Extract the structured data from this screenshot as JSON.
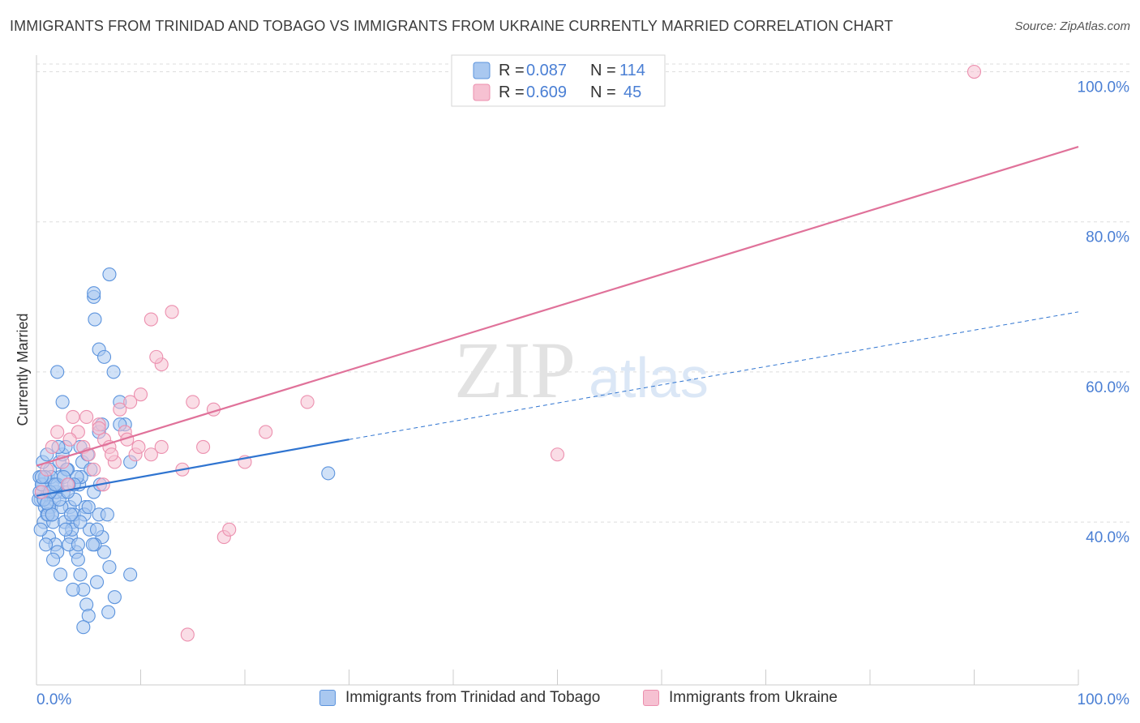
{
  "title": "IMMIGRANTS FROM TRINIDAD AND TOBAGO VS IMMIGRANTS FROM UKRAINE CURRENTLY MARRIED CORRELATION CHART",
  "source": "Source: ZipAtlas.com",
  "watermark": {
    "zip": "ZIP",
    "atlas": "atlas"
  },
  "colors": {
    "blue_fill": "#a9c8f0",
    "blue_stroke": "#5b93dd",
    "blue_line": "#2f74d0",
    "pink_fill": "#f6c1d2",
    "pink_stroke": "#ec8fae",
    "pink_line": "#e0729a",
    "tick_label": "#4a7fd4",
    "grid": "#dddddd"
  },
  "legend": {
    "entries": [
      {
        "r_label": "R =",
        "r_value": "0.087",
        "n_label": "N =",
        "n_value": "114"
      },
      {
        "r_label": "R =",
        "r_value": "0.609",
        "n_label": "N =",
        "n_value": "45"
      }
    ]
  },
  "chart_data": {
    "type": "scatter",
    "ylabel": "Currently Married",
    "xlim": [
      0,
      100
    ],
    "ylim": [
      18.3,
      102
    ],
    "x_tick_labels": [
      "0.0%",
      "100.0%"
    ],
    "y_ticks": [
      {
        "value": 40,
        "label": "40.0%"
      },
      {
        "value": 60,
        "label": "60.0%"
      },
      {
        "value": 80,
        "label": "80.0%"
      },
      {
        "value": 100,
        "label": "100.0%"
      }
    ],
    "grid": true,
    "legend_position": "top-center",
    "series": [
      {
        "name": "Immigrants from Trinidad and Tobago",
        "color": "blue",
        "trend": {
          "solid": [
            [
              0,
              43.5
            ],
            [
              30,
              51.0
            ]
          ],
          "dashed": [
            [
              30,
              51.0
            ],
            [
              100,
              68.0
            ]
          ]
        },
        "points": [
          [
            0.3,
            46
          ],
          [
            0.5,
            44
          ],
          [
            0.4,
            43
          ],
          [
            0.6,
            45
          ],
          [
            0.8,
            42
          ],
          [
            1.0,
            41
          ],
          [
            0.7,
            40
          ],
          [
            1.2,
            38
          ],
          [
            0.9,
            46
          ],
          [
            1.1,
            44
          ],
          [
            1.3,
            47
          ],
          [
            1.5,
            45
          ],
          [
            1.4,
            42
          ],
          [
            1.6,
            40
          ],
          [
            1.8,
            37
          ],
          [
            2.0,
            36
          ],
          [
            1.7,
            43
          ],
          [
            2.2,
            48
          ],
          [
            2.5,
            49
          ],
          [
            2.3,
            46
          ],
          [
            2.8,
            50
          ],
          [
            3.0,
            47
          ],
          [
            2.6,
            44
          ],
          [
            3.2,
            42
          ],
          [
            3.5,
            40
          ],
          [
            3.3,
            38
          ],
          [
            3.8,
            36
          ],
          [
            4.0,
            35
          ],
          [
            4.2,
            33
          ],
          [
            4.5,
            31
          ],
          [
            4.8,
            29
          ],
          [
            5.0,
            27.5
          ],
          [
            3.6,
            41
          ],
          [
            4.1,
            45
          ],
          [
            4.4,
            48
          ],
          [
            4.9,
            49
          ],
          [
            5.2,
            47
          ],
          [
            5.5,
            44
          ],
          [
            6.0,
            41
          ],
          [
            6.3,
            38
          ],
          [
            6.5,
            36
          ],
          [
            7.0,
            34
          ],
          [
            7.5,
            30
          ],
          [
            8.0,
            56
          ],
          [
            8.5,
            53
          ],
          [
            9.0,
            48
          ],
          [
            2.1,
            50
          ],
          [
            1.9,
            44
          ],
          [
            0.2,
            43
          ],
          [
            0.6,
            48
          ],
          [
            1.0,
            49
          ],
          [
            1.4,
            46
          ],
          [
            2.4,
            42
          ],
          [
            2.7,
            40
          ],
          [
            3.1,
            37
          ],
          [
            3.4,
            39
          ],
          [
            3.7,
            43
          ],
          [
            4.3,
            46
          ],
          [
            4.7,
            42
          ],
          [
            5.1,
            39
          ],
          [
            5.6,
            37
          ],
          [
            6.1,
            45
          ],
          [
            0.3,
            44
          ],
          [
            0.5,
            45
          ],
          [
            0.8,
            46
          ],
          [
            1.2,
            42
          ],
          [
            1.5,
            41
          ],
          [
            2.0,
            45
          ],
          [
            2.9,
            47
          ],
          [
            3.9,
            46
          ],
          [
            4.6,
            41
          ],
          [
            5.4,
            37
          ],
          [
            6.8,
            41
          ],
          [
            0.4,
            39
          ],
          [
            1.1,
            41
          ],
          [
            2.2,
            43
          ],
          [
            3.0,
            44
          ],
          [
            3.6,
            45
          ],
          [
            4.2,
            40
          ],
          [
            5.0,
            42
          ],
          [
            5.8,
            39
          ],
          [
            0.7,
            43
          ],
          [
            1.3,
            44
          ],
          [
            1.8,
            45
          ],
          [
            2.6,
            46
          ],
          [
            3.3,
            41
          ],
          [
            4.0,
            37
          ],
          [
            6.9,
            28
          ],
          [
            0.9,
            37
          ],
          [
            1.6,
            35
          ],
          [
            2.3,
            33
          ],
          [
            3.5,
            31
          ],
          [
            4.5,
            26
          ],
          [
            7.0,
            73
          ],
          [
            5.5,
            70
          ],
          [
            5.5,
            70.5
          ],
          [
            6.0,
            63
          ],
          [
            6.5,
            62
          ],
          [
            5.6,
            67
          ],
          [
            2.0,
            60
          ],
          [
            6.0,
            52
          ],
          [
            6.3,
            53
          ],
          [
            7.4,
            60
          ],
          [
            2.5,
            56
          ],
          [
            1.5,
            41
          ],
          [
            1.0,
            42.5
          ],
          [
            2.8,
            39
          ],
          [
            3.1,
            45
          ],
          [
            0.5,
            46
          ],
          [
            5.8,
            32
          ],
          [
            8.0,
            53
          ],
          [
            9.0,
            33
          ],
          [
            28.0,
            46.5
          ],
          [
            4.2,
            50
          ]
        ]
      },
      {
        "name": "Immigrants from Ukraine",
        "color": "pink",
        "trend": {
          "solid": [
            [
              0,
              47.5
            ],
            [
              100,
              90.0
            ]
          ]
        },
        "points": [
          [
            0.5,
            44
          ],
          [
            1.0,
            47
          ],
          [
            1.5,
            50
          ],
          [
            2.0,
            52
          ],
          [
            2.5,
            48
          ],
          [
            3.0,
            45
          ],
          [
            3.5,
            54
          ],
          [
            4.0,
            52
          ],
          [
            4.5,
            50
          ],
          [
            5.0,
            49
          ],
          [
            5.5,
            47
          ],
          [
            6.0,
            53
          ],
          [
            6.5,
            51
          ],
          [
            7.0,
            50
          ],
          [
            7.5,
            48
          ],
          [
            8.0,
            55
          ],
          [
            8.5,
            52
          ],
          [
            9.0,
            56
          ],
          [
            9.5,
            49
          ],
          [
            10.0,
            57
          ],
          [
            11.0,
            67
          ],
          [
            12.0,
            61
          ],
          [
            13.0,
            68
          ],
          [
            11.5,
            62
          ],
          [
            14.0,
            47
          ],
          [
            15.0,
            56
          ],
          [
            16.0,
            50
          ],
          [
            17.0,
            55
          ],
          [
            18.0,
            38
          ],
          [
            18.5,
            39
          ],
          [
            20.0,
            48
          ],
          [
            22.0,
            52
          ],
          [
            26.0,
            56
          ],
          [
            50.0,
            49
          ],
          [
            90.0,
            100
          ],
          [
            11.0,
            49
          ],
          [
            12.0,
            50
          ],
          [
            4.8,
            54
          ],
          [
            6.0,
            52.5
          ],
          [
            3.2,
            51
          ],
          [
            7.2,
            49
          ],
          [
            8.7,
            51
          ],
          [
            9.8,
            50
          ],
          [
            6.4,
            45
          ],
          [
            14.5,
            25
          ]
        ]
      }
    ]
  },
  "bottom_legend": [
    {
      "label": "Immigrants from Trinidad and Tobago",
      "color": "blue"
    },
    {
      "label": "Immigrants from Ukraine",
      "color": "pink"
    }
  ]
}
